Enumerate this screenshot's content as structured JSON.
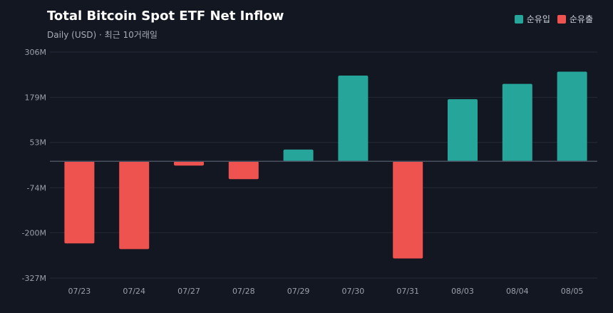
{
  "header": {
    "title": "Total Bitcoin Spot ETF Net Inflow",
    "subtitle": "Daily (USD) · 최근 10거래일"
  },
  "legend": {
    "items": [
      {
        "label": "순유입",
        "color": "#26a69a",
        "icon": "square-swatch"
      },
      {
        "label": "순유출",
        "color": "#ef5350",
        "icon": "square-swatch"
      }
    ]
  },
  "colors": {
    "inflow": "#26a69a",
    "outflow": "#ef5350",
    "grid": "#252a35",
    "zero_line": "#4b5060",
    "background": "#131722"
  },
  "chart_data": {
    "type": "bar",
    "title": "Total Bitcoin Spot ETF Net Inflow",
    "subtitle": "Daily (USD) · 최근 10거래일",
    "categories": [
      "07/23",
      "07/24",
      "07/27",
      "07/28",
      "07/29",
      "07/30",
      "07/31",
      "08/03",
      "08/04",
      "08/05"
    ],
    "values": [
      -230,
      -246,
      -12,
      -50,
      33,
      240,
      -272,
      174,
      217,
      251
    ],
    "unit": "M",
    "yticks": [
      306,
      179,
      53,
      -74,
      -200,
      -327
    ],
    "ytick_labels": [
      "306M",
      "179M",
      "53M",
      "-74M",
      "-200M",
      "-327M"
    ],
    "ylim": [
      -327,
      306
    ],
    "grid": true,
    "legend_position": "top-right",
    "xlabel": "",
    "ylabel": ""
  }
}
